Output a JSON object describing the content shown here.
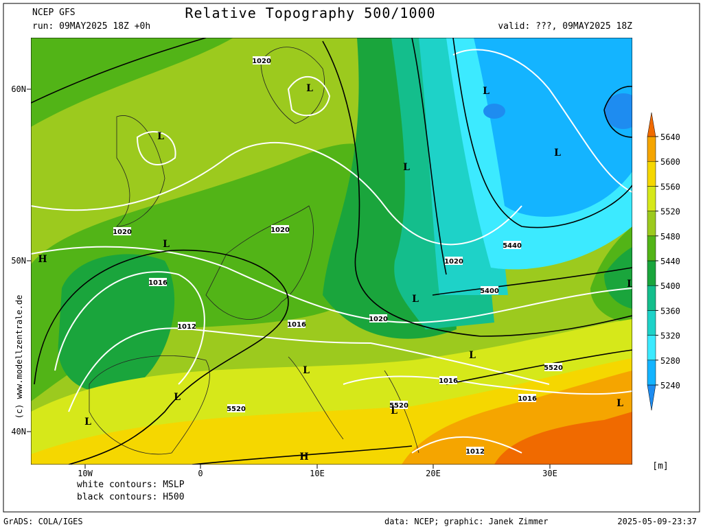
{
  "header": {
    "model": "NCEP GFS",
    "run": "run: 09MAY2025 18Z +0h",
    "title": "Relative Topography 500/1000",
    "valid": "valid: ???, 09MAY2025 18Z"
  },
  "map": {
    "lat_labels": [
      "60N",
      "50N",
      "40N"
    ],
    "lon_labels": [
      "10W",
      "0",
      "10E",
      "20E",
      "30E"
    ],
    "contour_labels": [
      "1020",
      "1020",
      "1020",
      "1020",
      "1020",
      "1016",
      "1016",
      "1016",
      "1016",
      "1012",
      "1012",
      "5440",
      "5520",
      "5520",
      "5520",
      "5400"
    ],
    "pressure_centers": [
      "H",
      "H",
      "L",
      "L",
      "L",
      "L",
      "L",
      "L",
      "L",
      "L",
      "L",
      "L",
      "L",
      "L",
      "L",
      "L"
    ],
    "credit": "(c) www.modellzentrale.de"
  },
  "legend": {
    "mslp": "white contours: MSLP",
    "h500": "black contours: H500"
  },
  "colorbar": {
    "levels": [
      5240,
      5280,
      5320,
      5360,
      5400,
      5440,
      5480,
      5520,
      5560,
      5600,
      5640
    ],
    "colors": [
      "#1e8cf0",
      "#14b4ff",
      "#3ceaff",
      "#1ed2c8",
      "#14be8c",
      "#1aa53c",
      "#52b417",
      "#9cca1e",
      "#d6e81a",
      "#f5d700",
      "#f5a500",
      "#f06a00"
    ],
    "unit": "[m]"
  },
  "footer": {
    "left": "GrADS: COLA/IGES",
    "center": "data: NCEP; graphic: Janek Zimmer",
    "right": "2025-05-09-23:37"
  }
}
